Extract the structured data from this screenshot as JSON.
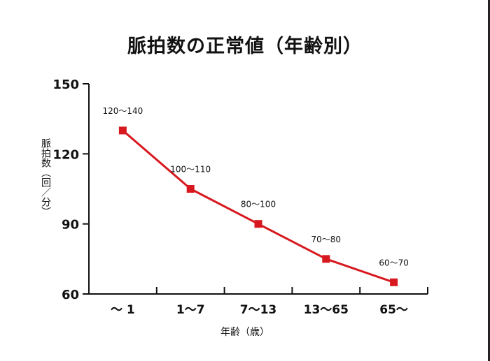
{
  "chart_data": {
    "type": "line",
    "title": "脈拍数の正常値（年齢別）",
    "xlabel": "年齢（歳）",
    "ylabel": "脈拍数（回／分）",
    "categories": [
      "〜 1",
      "1〜7",
      "7〜13",
      "13〜65",
      "65〜"
    ],
    "series": [
      {
        "values": [
          130,
          105,
          90,
          75,
          65
        ],
        "labels": [
          "120〜140",
          "100〜110",
          "80〜100",
          "70〜80",
          "60〜70"
        ]
      }
    ],
    "yticks": [
      60,
      90,
      120,
      150
    ],
    "ylim": [
      60,
      150
    ],
    "grid": false,
    "line_color": "#d7191f"
  }
}
